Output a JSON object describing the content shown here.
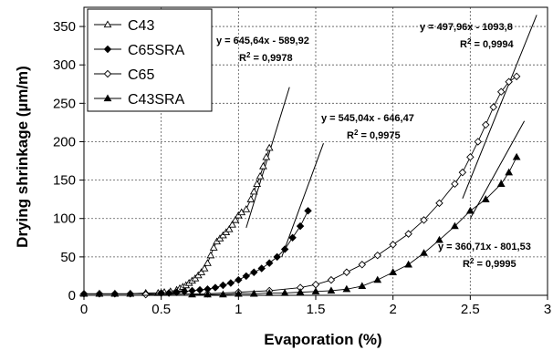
{
  "chart_data": {
    "type": "scatter",
    "xlabel": "Evaporation (%)",
    "ylabel": "Drying shrinkage (µm/m)",
    "xlim": [
      0,
      3
    ],
    "ylim": [
      0,
      375
    ],
    "x_ticks": [
      0,
      0.5,
      1,
      1.5,
      2,
      2.5,
      3
    ],
    "x_tick_labels": [
      "0",
      "0.5",
      "1",
      "1.5",
      "2",
      "2.5",
      "3"
    ],
    "y_ticks": [
      0,
      50,
      100,
      150,
      200,
      250,
      300,
      350
    ],
    "y_tick_labels": [
      "0",
      "50",
      "100",
      "150",
      "200",
      "250",
      "300",
      "350"
    ],
    "grid": "dashed horizontal and vertical",
    "legend_position": "top-left",
    "series": [
      {
        "name": "C43",
        "marker": "open-triangle",
        "x": [
          0.0,
          0.1,
          0.2,
          0.3,
          0.4,
          0.48,
          0.52,
          0.56,
          0.6,
          0.62,
          0.64,
          0.66,
          0.68,
          0.7,
          0.72,
          0.74,
          0.76,
          0.78,
          0.8,
          0.82,
          0.84,
          0.86,
          0.88,
          0.9,
          0.92,
          0.94,
          0.96,
          0.98,
          1.0,
          1.02,
          1.05,
          1.08,
          1.1,
          1.12,
          1.14,
          1.16,
          1.18,
          1.2
        ],
        "y": [
          2,
          2,
          2,
          2,
          3,
          3,
          4,
          5,
          7,
          9,
          11,
          13,
          16,
          19,
          22,
          26,
          30,
          35,
          42,
          52,
          62,
          70,
          74,
          78,
          82,
          86,
          92,
          98,
          104,
          108,
          112,
          125,
          135,
          145,
          155,
          168,
          180,
          192
        ]
      },
      {
        "name": "C65SRA",
        "marker": "filled-diamond",
        "x": [
          0.0,
          0.1,
          0.2,
          0.3,
          0.4,
          0.5,
          0.55,
          0.6,
          0.65,
          0.7,
          0.75,
          0.8,
          0.85,
          0.9,
          0.95,
          1.0,
          1.05,
          1.1,
          1.15,
          1.2,
          1.25,
          1.3,
          1.35,
          1.4,
          1.45
        ],
        "y": [
          2,
          2,
          2,
          2,
          2,
          3,
          3,
          4,
          5,
          6,
          7,
          8,
          10,
          13,
          16,
          20,
          25,
          30,
          35,
          42,
          50,
          60,
          75,
          90,
          110
        ]
      },
      {
        "name": "C65",
        "marker": "open-diamond",
        "x": [
          0.4,
          0.8,
          1.0,
          1.2,
          1.4,
          1.5,
          1.6,
          1.7,
          1.8,
          1.9,
          2.0,
          2.1,
          2.2,
          2.3,
          2.4,
          2.45,
          2.5,
          2.55,
          2.6,
          2.65,
          2.7,
          2.75,
          2.8
        ],
        "y": [
          1,
          2,
          4,
          6,
          10,
          14,
          20,
          30,
          40,
          52,
          66,
          80,
          98,
          120,
          145,
          160,
          180,
          200,
          222,
          245,
          265,
          278,
          285
        ]
      },
      {
        "name": "C43SRA",
        "marker": "filled-triangle",
        "x": [
          0.7,
          0.8,
          0.9,
          1.0,
          1.1,
          1.2,
          1.3,
          1.4,
          1.5,
          1.6,
          1.7,
          1.8,
          1.9,
          2.0,
          2.1,
          2.2,
          2.3,
          2.4,
          2.5,
          2.6,
          2.7,
          2.75,
          2.8
        ],
        "y": [
          1,
          1,
          1,
          2,
          2,
          3,
          3,
          4,
          5,
          6,
          8,
          12,
          20,
          30,
          40,
          55,
          72,
          90,
          110,
          125,
          145,
          160,
          180
        ]
      }
    ],
    "regression_lines": [
      {
        "equation": "y = 645,64x - 589,92",
        "r2": "R",
        "r2_exp": "2",
        "r2_value": " = 0,9978",
        "x_range": [
          1.05,
          1.33
        ],
        "y_at_range": [
          88,
          271
        ]
      },
      {
        "equation": "y = 545,04x - 646,47",
        "r2": "R",
        "r2_exp": "2",
        "r2_value": " = 0,9975",
        "x_range": [
          1.28,
          1.55
        ],
        "y_at_range": [
          50,
          198
        ]
      },
      {
        "equation": "y = 497,96x - 1093,8",
        "r2": "R",
        "r2_exp": "2",
        "r2_value": " = 0,9994",
        "x_range": [
          2.45,
          2.93
        ],
        "y_at_range": [
          126,
          365
        ]
      },
      {
        "equation": "y = 360,71x - 801,53",
        "r2": "R",
        "r2_exp": "2",
        "r2_value": " = 0,9995",
        "x_range": [
          2.5,
          2.85
        ],
        "y_at_range": [
          100,
          227
        ]
      }
    ]
  }
}
